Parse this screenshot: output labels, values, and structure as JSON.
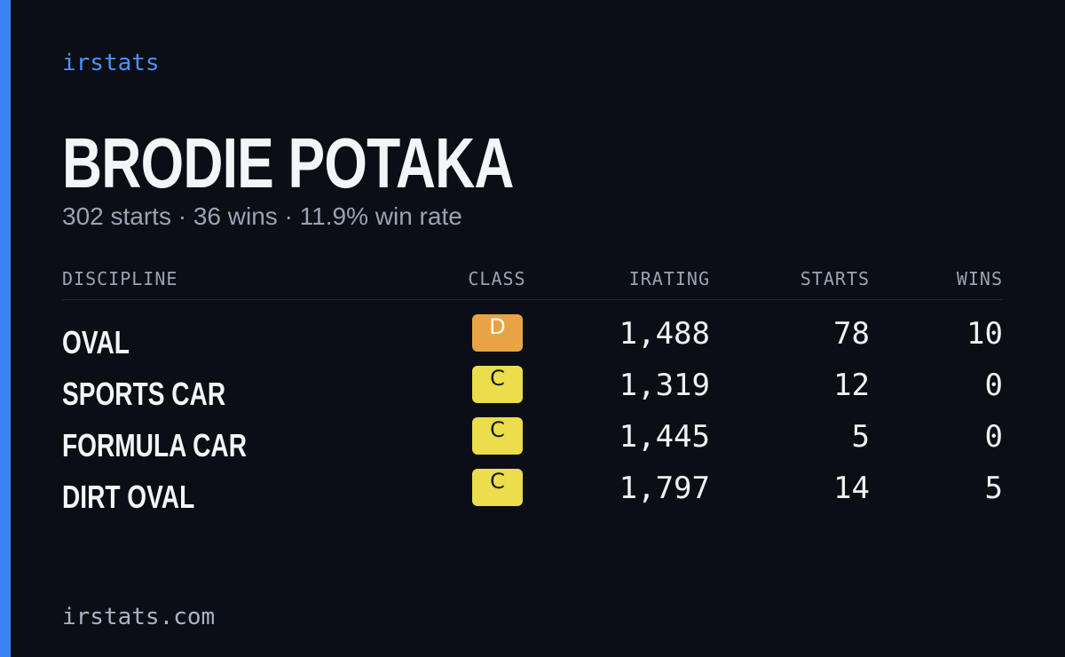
{
  "brand": "irstats",
  "player": {
    "name": "BRODIE POTAKA",
    "summary": "302 starts · 36 wins · 11.9% win rate"
  },
  "table": {
    "columns": [
      "DISCIPLINE",
      "CLASS",
      "IRATING",
      "STARTS",
      "WINS"
    ],
    "rows": [
      [
        "OVAL",
        "D",
        "1,488",
        "78",
        "10"
      ],
      [
        "SPORTS CAR",
        "C",
        "1,319",
        "12",
        "0"
      ],
      [
        "FORMULA CAR",
        "C",
        "1,445",
        "5",
        "0"
      ],
      [
        "DIRT OVAL",
        "C",
        "1,797",
        "14",
        "5"
      ]
    ]
  },
  "footer": "irstats.com"
}
